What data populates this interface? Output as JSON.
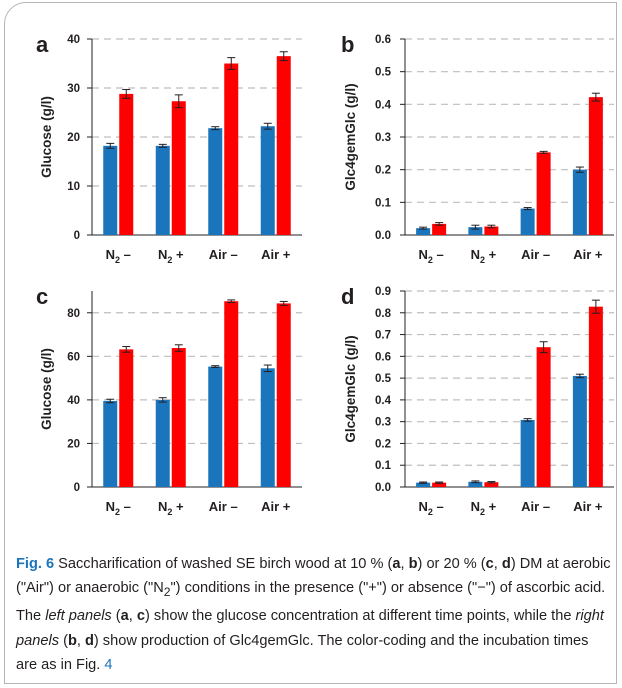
{
  "colors": {
    "series_early": "#1b75bc",
    "series_late": "#ff0000",
    "grid": "#bfbfbf",
    "axis": "#231f20",
    "accent": "#1a75bc"
  },
  "chart_data": [
    {
      "panel": "a",
      "type": "bar",
      "ylabel": "Glucose (g/l)",
      "categories": [
        [
          "N",
          "2",
          " –"
        ],
        [
          "N",
          "2",
          " +"
        ],
        [
          "Air –"
        ],
        [
          "Air +"
        ]
      ],
      "ylim": [
        0,
        40
      ],
      "yticks": [
        0,
        10,
        20,
        30,
        40
      ],
      "ytick_labels": [
        "0",
        "10",
        "20",
        "30",
        "40"
      ],
      "grid": true,
      "series": [
        {
          "color_key": "series_early",
          "values": [
            18.2,
            18.2,
            21.8,
            22.2
          ],
          "errors": [
            0.5,
            0.3,
            0.3,
            0.6
          ]
        },
        {
          "color_key": "series_late",
          "values": [
            28.8,
            27.3,
            35.0,
            36.5
          ],
          "errors": [
            0.9,
            1.3,
            1.2,
            0.9
          ]
        }
      ]
    },
    {
      "panel": "b",
      "type": "bar",
      "ylabel": "Glc4gemGlc (g/l)",
      "categories": [
        [
          "N",
          "2",
          " –"
        ],
        [
          "N",
          "2",
          " +"
        ],
        [
          "Air –"
        ],
        [
          "Air +"
        ]
      ],
      "ylim": [
        0,
        0.6
      ],
      "yticks": [
        0,
        0.1,
        0.2,
        0.3,
        0.4,
        0.5,
        0.6
      ],
      "ytick_labels": [
        "0.0",
        "0.1",
        "0.2",
        "0.3",
        "0.4",
        "0.5",
        "0.6"
      ],
      "grid": true,
      "series": [
        {
          "color_key": "series_early",
          "values": [
            0.021,
            0.024,
            0.081,
            0.2
          ],
          "errors": [
            0.003,
            0.006,
            0.003,
            0.008
          ]
        },
        {
          "color_key": "series_late",
          "values": [
            0.034,
            0.026,
            0.253,
            0.422
          ],
          "errors": [
            0.004,
            0.004,
            0.003,
            0.012
          ]
        }
      ]
    },
    {
      "panel": "c",
      "type": "bar",
      "ylabel": "Glucose (g/l)",
      "categories": [
        [
          "N",
          "2",
          " –"
        ],
        [
          "N",
          "2",
          " +"
        ],
        [
          "Air –"
        ],
        [
          "Air +"
        ]
      ],
      "ylim": [
        0,
        90
      ],
      "yticks": [
        0,
        20,
        40,
        60,
        80
      ],
      "ytick_labels": [
        "0",
        "20",
        "40",
        "60",
        "80"
      ],
      "grid": true,
      "series": [
        {
          "color_key": "series_early",
          "values": [
            39.5,
            40.0,
            55.3,
            54.5
          ],
          "errors": [
            0.8,
            1.0,
            0.4,
            1.5
          ]
        },
        {
          "color_key": "series_late",
          "values": [
            63.2,
            63.8,
            85.3,
            84.3
          ],
          "errors": [
            1.3,
            1.5,
            0.6,
            0.9
          ]
        }
      ]
    },
    {
      "panel": "d",
      "type": "bar",
      "ylabel": "Glc4gemGlc (g/l)",
      "categories": [
        [
          "N",
          "2",
          " –"
        ],
        [
          "N",
          "2",
          " +"
        ],
        [
          "Air –"
        ],
        [
          "Air +"
        ]
      ],
      "ylim": [
        0,
        0.9
      ],
      "yticks": [
        0,
        0.1,
        0.2,
        0.3,
        0.4,
        0.5,
        0.6,
        0.7,
        0.8,
        0.9
      ],
      "ytick_labels": [
        "0.0",
        "0.1",
        "0.2",
        "0.3",
        "0.4",
        "0.5",
        "0.6",
        "0.7",
        "0.8",
        "0.9"
      ],
      "grid": true,
      "series": [
        {
          "color_key": "series_early",
          "values": [
            0.02,
            0.024,
            0.308,
            0.51
          ],
          "errors": [
            0.003,
            0.004,
            0.006,
            0.008
          ]
        },
        {
          "color_key": "series_late",
          "values": [
            0.02,
            0.022,
            0.642,
            0.828
          ],
          "errors": [
            0.003,
            0.003,
            0.025,
            0.03
          ]
        }
      ]
    }
  ],
  "caption": {
    "fig_label": "Fig. 6",
    "p1": "  Saccharification of washed SE birch wood at 10 % (",
    "a1": "a",
    "p2": ", ",
    "b1": "b",
    "p3": ") or 20 % (",
    "c1": "c",
    "p4": ", ",
    "d1": "d",
    "p5": ") DM at aerobic (\"Air\") or anaerobic (\"N",
    "sub2": "2",
    "p6": "\") conditions in the presence (\"+\") or absence (\"−\") of ascorbic acid. The ",
    "left_panels": "left panels",
    "p7": " (",
    "a2": "a",
    "p8": ", ",
    "c2": "c",
    "p9": ") show the glucose concentration at different time points, while the ",
    "right_panels": "right panels",
    "p10": " (",
    "b2": "b",
    "p11": ", ",
    "d2": "d",
    "p12": ") show production of Glc4gemGlc. The color-coding and the incubation times are as in Fig. ",
    "fig_ref": "4"
  }
}
